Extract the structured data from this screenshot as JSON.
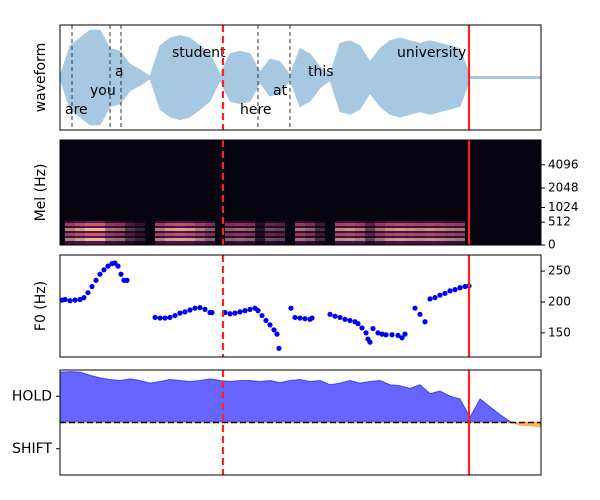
{
  "chart_data": [
    {
      "type": "area",
      "ylabel": "waveform",
      "color": "#a6c8e0",
      "xlim": [
        0,
        481
      ],
      "ylim": [
        -1,
        1
      ],
      "x": [
        0,
        10,
        20,
        30,
        40,
        50,
        60,
        70,
        80,
        90,
        100,
        110,
        120,
        130,
        140,
        150,
        160,
        170,
        180,
        190,
        200,
        210,
        220,
        230,
        240,
        250,
        260,
        270,
        280,
        290,
        300,
        310,
        320,
        330,
        340,
        350,
        360,
        370,
        380,
        390,
        400,
        410,
        420,
        430,
        440,
        450,
        460,
        470,
        480
      ],
      "values": [
        0.02,
        0.6,
        0.75,
        0.9,
        0.9,
        0.55,
        0.5,
        0.25,
        0.15,
        0.02,
        0.6,
        0.75,
        0.8,
        0.75,
        0.6,
        0.45,
        0.05,
        0.45,
        0.5,
        0.45,
        0.1,
        0.35,
        0.3,
        0.05,
        0.55,
        0.45,
        0.2,
        0.05,
        0.65,
        0.7,
        0.6,
        0.3,
        0.55,
        0.7,
        0.75,
        0.7,
        0.65,
        0.7,
        0.65,
        0.6,
        0.55,
        0.02,
        0.02,
        0.02,
        0.02,
        0.02,
        0.02,
        0.02,
        0.02
      ],
      "words": [
        {
          "text": "are",
          "x": 5
        },
        {
          "text": "you",
          "x": 30
        },
        {
          "text": "a",
          "x": 55
        },
        {
          "text": "student",
          "x": 112
        },
        {
          "text": "here",
          "x": 180
        },
        {
          "text": "at",
          "x": 213
        },
        {
          "text": "this",
          "x": 248
        },
        {
          "text": "university",
          "x": 337
        }
      ],
      "boundaries": [
        12,
        50,
        61,
        198,
        230
      ],
      "vlines": [
        {
          "x": 163,
          "color": "#ff2020",
          "dashed": true
        },
        {
          "x": 409,
          "color": "#ff2020",
          "dashed": false
        }
      ]
    },
    {
      "type": "heatmap",
      "ylabel": "Mel (Hz)",
      "yscale": "mel",
      "xlim": [
        0,
        481
      ],
      "ylim": [
        0,
        8000
      ],
      "yticks": [
        0,
        512,
        1024,
        2048,
        4096
      ],
      "vlines": [
        {
          "x": 163,
          "color": "#ff2020",
          "dashed": true
        },
        {
          "x": 409,
          "color": "#ff2020",
          "dashed": false
        }
      ]
    },
    {
      "type": "scatter",
      "ylabel": "F0 (Hz)",
      "color": "#0000ee",
      "xlim": [
        0,
        481
      ],
      "ylim": [
        111,
        276
      ],
      "yticks": [
        150,
        200,
        250
      ],
      "x": [
        2,
        5,
        10,
        15,
        20,
        24,
        28,
        32,
        36,
        40,
        44,
        48,
        52,
        55,
        58,
        61,
        64,
        67,
        95,
        100,
        105,
        110,
        115,
        120,
        125,
        130,
        135,
        140,
        145,
        150,
        152,
        165,
        170,
        175,
        180,
        185,
        190,
        195,
        198,
        202,
        206,
        210,
        214,
        217,
        219,
        231,
        235,
        240,
        245,
        250,
        252,
        270,
        275,
        280,
        285,
        290,
        295,
        298,
        302,
        306,
        308,
        310,
        313,
        318,
        322,
        326,
        332,
        338,
        342,
        345,
        355,
        360,
        365,
        370,
        375,
        380,
        385,
        390,
        395,
        400,
        405,
        409
      ],
      "values": [
        203,
        204,
        202,
        203,
        204,
        207,
        215,
        225,
        235,
        245,
        252,
        258,
        262,
        263,
        258,
        245,
        235,
        235,
        175,
        174,
        174,
        175,
        178,
        182,
        184,
        187,
        190,
        191,
        188,
        183,
        183,
        183,
        181,
        182,
        184,
        186,
        188,
        190,
        186,
        178,
        170,
        163,
        155,
        148,
        125,
        190,
        175,
        174,
        173,
        172,
        174,
        180,
        177,
        175,
        172,
        170,
        168,
        165,
        158,
        150,
        140,
        135,
        157,
        150,
        148,
        147,
        147,
        146,
        142,
        148,
        190,
        180,
        168,
        205,
        207,
        211,
        214,
        218,
        220,
        223,
        225,
        226
      ],
      "vlines": [
        {
          "x": 163,
          "color": "#ff2020",
          "dashed": true
        },
        {
          "x": 409,
          "color": "#ff2020",
          "dashed": false
        }
      ]
    },
    {
      "type": "area",
      "color": "#0000ff",
      "negative_color": "#ffa530",
      "xlim": [
        0,
        481
      ],
      "ylim": [
        -1,
        1
      ],
      "yticks": [
        {
          "value": 0.5,
          "label": "HOLD"
        },
        {
          "value": -0.5,
          "label": "SHIFT"
        }
      ],
      "baseline": 0,
      "x": [
        0,
        10,
        20,
        30,
        40,
        50,
        60,
        70,
        80,
        90,
        100,
        110,
        120,
        130,
        140,
        150,
        160,
        170,
        180,
        190,
        200,
        210,
        220,
        230,
        240,
        250,
        260,
        270,
        280,
        290,
        300,
        310,
        320,
        330,
        340,
        350,
        360,
        370,
        380,
        390,
        400,
        410,
        420,
        430,
        440,
        450,
        460,
        470,
        480
      ],
      "values": [
        0.96,
        0.97,
        0.96,
        0.9,
        0.85,
        0.82,
        0.8,
        0.83,
        0.8,
        0.75,
        0.78,
        0.82,
        0.8,
        0.78,
        0.8,
        0.83,
        0.8,
        0.78,
        0.8,
        0.8,
        0.78,
        0.8,
        0.76,
        0.8,
        0.82,
        0.78,
        0.8,
        0.72,
        0.75,
        0.8,
        0.75,
        0.78,
        0.8,
        0.72,
        0.7,
        0.65,
        0.72,
        0.55,
        0.6,
        0.5,
        0.45,
        0.1,
        0.45,
        0.3,
        0.15,
        0.02,
        -0.05,
        -0.06,
        -0.08
      ],
      "vlines": [
        {
          "x": 163,
          "color": "#ff2020",
          "dashed": true
        },
        {
          "x": 409,
          "color": "#ff2020",
          "dashed": false
        }
      ]
    }
  ]
}
